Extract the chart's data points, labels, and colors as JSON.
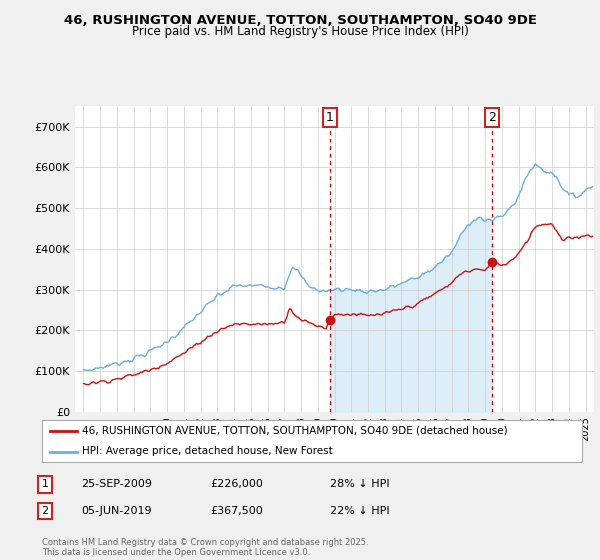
{
  "title_line1": "46, RUSHINGTON AVENUE, TOTTON, SOUTHAMPTON, SO40 9DE",
  "title_line2": "Price paid vs. HM Land Registry's House Price Index (HPI)",
  "background_color": "#f0f0f0",
  "plot_bg_color": "#ffffff",
  "hpi_color": "#6aafe0",
  "price_color": "#cc1111",
  "vline_color": "#cc0000",
  "shade_color": "#ddeef8",
  "marker1_year": 2009.73,
  "marker2_year": 2019.43,
  "marker1_price": 226000,
  "marker2_price": 367500,
  "ylim_min": 0,
  "ylim_max": 750000,
  "xlim_min": 1994.5,
  "xlim_max": 2025.5,
  "legend_label_price": "46, RUSHINGTON AVENUE, TOTTON, SOUTHAMPTON, SO40 9DE (detached house)",
  "legend_label_hpi": "HPI: Average price, detached house, New Forest",
  "table_row1": [
    "1",
    "25-SEP-2009",
    "£226,000",
    "28% ↓ HPI"
  ],
  "table_row2": [
    "2",
    "05-JUN-2019",
    "£367,500",
    "22% ↓ HPI"
  ],
  "footer": "Contains HM Land Registry data © Crown copyright and database right 2025.\nThis data is licensed under the Open Government Licence v3.0.",
  "ytick_labels": [
    "£0",
    "£100K",
    "£200K",
    "£300K",
    "£400K",
    "£500K",
    "£600K",
    "£700K"
  ],
  "ytick_values": [
    0,
    100000,
    200000,
    300000,
    400000,
    500000,
    600000,
    700000
  ]
}
